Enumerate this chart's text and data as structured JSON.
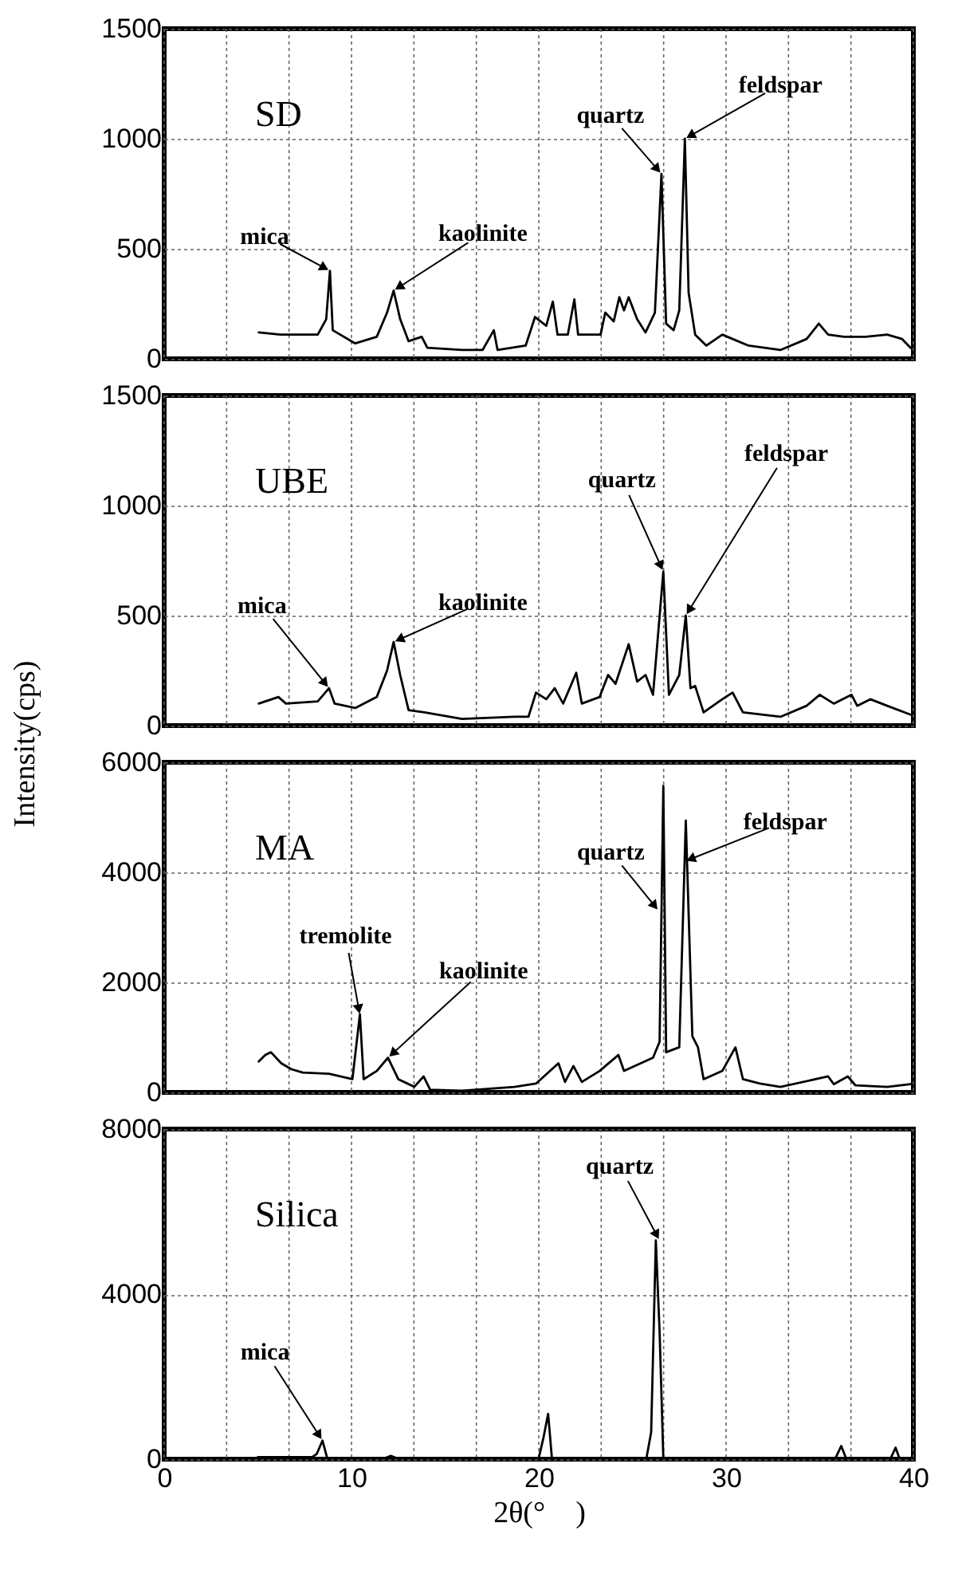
{
  "chart_data": [
    {
      "type": "line",
      "annotations": [
        "SD",
        {
          "text": "mica",
          "x": 8.85,
          "y": 400
        },
        {
          "text": "kaolinite",
          "x": 12.25,
          "y": 310
        },
        {
          "text": "quartz",
          "x": 26.55,
          "y": 840
        },
        {
          "text": "feldspar",
          "x": 27.8,
          "y": 1000
        }
      ],
      "x": [
        5.05,
        6.2,
        8.2,
        8.65,
        8.85,
        9.0,
        10.2,
        11.35,
        11.9,
        12.25,
        12.6,
        13.05,
        13.75,
        14.05,
        15.9,
        17.0,
        17.6,
        17.8,
        19.3,
        19.8,
        20.4,
        20.75,
        21.0,
        21.55,
        21.9,
        22.1,
        23.3,
        23.55,
        24.0,
        24.3,
        24.55,
        24.8,
        25.25,
        25.7,
        26.2,
        26.55,
        26.8,
        27.2,
        27.5,
        27.65,
        27.8,
        28.0,
        28.35,
        28.95,
        29.8,
        30.35,
        31.2,
        32.9,
        34.3,
        34.95,
        35.45,
        36.3,
        37.45,
        38.6,
        39.4,
        39.85
      ],
      "series": [
        {
          "color": "#000000",
          "values": [
            120,
            110,
            110,
            180,
            400,
            130,
            70,
            100,
            210,
            310,
            180,
            80,
            100,
            50,
            40,
            40,
            130,
            40,
            60,
            190,
            150,
            260,
            110,
            110,
            270,
            110,
            110,
            210,
            170,
            280,
            220,
            280,
            180,
            120,
            210,
            840,
            160,
            130,
            220,
            610,
            1000,
            300,
            110,
            60,
            110,
            90,
            60,
            40,
            90,
            160,
            110,
            100,
            100,
            110,
            90,
            50
          ]
        }
      ],
      "xlim": [
        0,
        40
      ],
      "xticks": [
        0,
        {
          "value": 3.333,
          "label": null
        },
        {
          "value": 6.667,
          "label": null
        },
        10,
        {
          "value": 13.333,
          "label": null
        },
        {
          "value": 16.667,
          "label": null
        },
        20,
        {
          "value": 23.333,
          "label": null
        },
        {
          "value": 26.667,
          "label": null
        },
        30,
        {
          "value": 33.333,
          "label": null
        },
        {
          "value": 36.667,
          "label": null
        },
        40
      ],
      "ylim": [
        0,
        1500
      ],
      "yticks": [
        0,
        500,
        1000,
        1500
      ],
      "grid": true,
      "tick_labels": "y"
    },
    {
      "type": "line",
      "ylabel": "Intensity(cps)",
      "annotations": [
        "UBE",
        {
          "text": "mica",
          "x": 8.8,
          "y": 170
        },
        {
          "text": "kaolinite",
          "x": 12.25,
          "y": 380
        },
        {
          "text": "quartz",
          "x": 26.65,
          "y": 700
        },
        {
          "text": "feldspar",
          "x": 27.85,
          "y": 500
        }
      ],
      "x": [
        5.05,
        6.1,
        6.5,
        8.2,
        8.8,
        9.1,
        10.2,
        11.35,
        11.9,
        12.25,
        12.6,
        13.05,
        13.9,
        15.9,
        18.7,
        19.45,
        19.85,
        20.4,
        20.85,
        21.3,
        22.0,
        22.3,
        23.25,
        23.7,
        24.1,
        24.8,
        25.25,
        25.7,
        26.1,
        26.65,
        26.95,
        27.5,
        27.85,
        28.1,
        28.35,
        28.8,
        29.8,
        30.35,
        30.9,
        32.9,
        34.3,
        35.0,
        35.75,
        36.7,
        37.0,
        37.7,
        38.6,
        39.85
      ],
      "series": [
        {
          "color": "#000000",
          "values": [
            100,
            130,
            100,
            110,
            170,
            100,
            80,
            130,
            250,
            380,
            230,
            70,
            60,
            30,
            40,
            40,
            150,
            120,
            170,
            100,
            240,
            100,
            130,
            230,
            190,
            370,
            200,
            230,
            140,
            700,
            140,
            230,
            500,
            170,
            180,
            60,
            120,
            150,
            60,
            40,
            90,
            140,
            100,
            140,
            90,
            120,
            90,
            50
          ]
        }
      ],
      "xlim": [
        0,
        40
      ],
      "xticks": [
        0,
        {
          "value": 3.333,
          "label": null
        },
        {
          "value": 6.667,
          "label": null
        },
        10,
        {
          "value": 13.333,
          "label": null
        },
        {
          "value": 16.667,
          "label": null
        },
        20,
        {
          "value": 23.333,
          "label": null
        },
        {
          "value": 26.667,
          "label": null
        },
        30,
        {
          "value": 33.333,
          "label": null
        },
        {
          "value": 36.667,
          "label": null
        },
        40
      ],
      "ylim": [
        0,
        1500
      ],
      "yticks": [
        0,
        500,
        1000,
        1500
      ],
      "grid": true,
      "tick_labels": "y"
    },
    {
      "type": "line",
      "annotations": [
        "MA",
        {
          "text": "tremolite",
          "x": 10.45,
          "y": 1400
        },
        {
          "text": "kaolinite",
          "x": 11.95,
          "y": 630
        },
        {
          "text": "quartz",
          "x": 26.4,
          "y": 3300
        },
        {
          "text": "feldspar",
          "x": 27.8,
          "y": 4200
        }
      ],
      "x": [
        5.05,
        5.4,
        5.7,
        6.25,
        6.8,
        7.4,
        8.8,
        10.05,
        10.45,
        10.65,
        11.35,
        11.95,
        12.5,
        13.35,
        13.85,
        14.2,
        15.9,
        18.7,
        19.85,
        21.05,
        21.4,
        21.85,
        22.3,
        23.25,
        24.25,
        24.55,
        26.1,
        26.45,
        26.65,
        26.8,
        27.5,
        27.85,
        28.2,
        28.5,
        28.8,
        29.8,
        30.5,
        30.9,
        31.8,
        32.9,
        35.45,
        35.75,
        36.5,
        36.9,
        38.6,
        39.85
      ],
      "series": [
        {
          "color": "#000000",
          "values": [
            560,
            680,
            730,
            530,
            420,
            360,
            340,
            240,
            1420,
            240,
            390,
            630,
            240,
            100,
            290,
            50,
            30,
            100,
            160,
            530,
            190,
            480,
            190,
            390,
            680,
            390,
            630,
            920,
            5570,
            730,
            820,
            4940,
            1020,
            820,
            240,
            390,
            820,
            240,
            160,
            100,
            290,
            150,
            290,
            130,
            100,
            150
          ]
        }
      ],
      "xlim": [
        0,
        40
      ],
      "xticks": [
        0,
        {
          "value": 3.333,
          "label": null
        },
        {
          "value": 6.667,
          "label": null
        },
        10,
        {
          "value": 13.333,
          "label": null
        },
        {
          "value": 16.667,
          "label": null
        },
        20,
        {
          "value": 23.333,
          "label": null
        },
        {
          "value": 26.667,
          "label": null
        },
        30,
        {
          "value": 33.333,
          "label": null
        },
        {
          "value": 36.667,
          "label": null
        },
        40
      ],
      "ylim": [
        0,
        6000
      ],
      "yticks": [
        0,
        2000,
        4000,
        6000
      ],
      "grid": true,
      "tick_labels": "y"
    },
    {
      "type": "line",
      "xlabel": "2θ(°　)",
      "annotations": [
        "Silica",
        {
          "text": "mica",
          "x": 8.45,
          "y": 450
        },
        {
          "text": "quartz",
          "x": 26.45,
          "y": 5300
        }
      ],
      "x": [
        5.0,
        7.9,
        8.15,
        8.45,
        8.7,
        11.8,
        12.1,
        12.4,
        20.0,
        20.25,
        20.5,
        20.7,
        25.75,
        26.0,
        26.25,
        26.45,
        26.65,
        35.85,
        36.15,
        36.4,
        38.8,
        39.05,
        39.25,
        39.95
      ],
      "series": [
        {
          "color": "#000000",
          "values": [
            50,
            50,
            130,
            450,
            30,
            30,
            80,
            30,
            30,
            520,
            1100,
            30,
            30,
            650,
            5300,
            3100,
            30,
            30,
            320,
            30,
            30,
            280,
            30,
            30
          ]
        }
      ],
      "xlim": [
        0,
        40
      ],
      "xticks": [
        0,
        {
          "value": 3.333,
          "label": null
        },
        {
          "value": 6.667,
          "label": null
        },
        10,
        {
          "value": 13.333,
          "label": null
        },
        {
          "value": 16.667,
          "label": null
        },
        20,
        {
          "value": 23.333,
          "label": null
        },
        {
          "value": 26.667,
          "label": null
        },
        30,
        {
          "value": 33.333,
          "label": null
        },
        {
          "value": 36.667,
          "label": null
        },
        40
      ],
      "ylim": [
        0,
        8000
      ],
      "yticks": [
        0,
        4000,
        8000
      ],
      "grid": true
    }
  ]
}
